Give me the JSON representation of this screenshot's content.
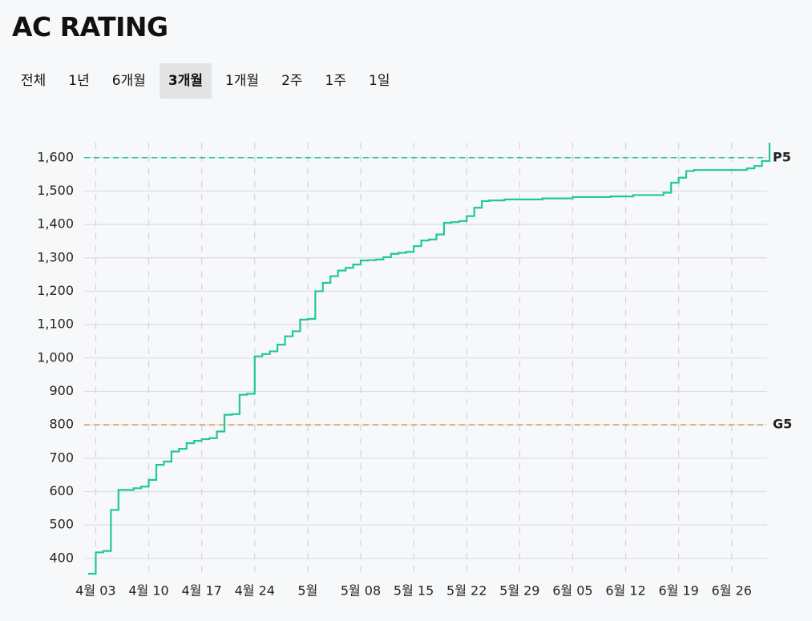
{
  "header": {
    "title": "AC RATING"
  },
  "tabs": [
    {
      "label": "전체"
    },
    {
      "label": "1년"
    },
    {
      "label": "6개월"
    },
    {
      "label": "3개월",
      "active": true
    },
    {
      "label": "1개월"
    },
    {
      "label": "2주"
    },
    {
      "label": "1주"
    },
    {
      "label": "1일"
    }
  ],
  "chart_data": {
    "type": "step",
    "x": [
      "04-02",
      "04-03",
      "04-04",
      "04-05",
      "04-06",
      "04-08",
      "04-09",
      "04-10",
      "04-11",
      "04-12",
      "04-13",
      "04-14",
      "04-15",
      "04-16",
      "04-17",
      "04-18",
      "04-19",
      "04-20",
      "04-21",
      "04-22",
      "04-23",
      "04-24",
      "04-25",
      "04-26",
      "04-27",
      "04-28",
      "04-29",
      "04-30",
      "05-01",
      "05-02",
      "05-03",
      "05-04",
      "05-05",
      "05-06",
      "05-07",
      "05-08",
      "05-09",
      "05-10",
      "05-11",
      "05-12",
      "05-13",
      "05-14",
      "05-15",
      "05-16",
      "05-17",
      "05-18",
      "05-19",
      "05-20",
      "05-21",
      "05-22",
      "05-23",
      "05-24",
      "05-25",
      "05-27",
      "06-01",
      "06-05",
      "06-10",
      "06-13",
      "06-17",
      "06-18",
      "06-19",
      "06-20",
      "06-21",
      "06-28",
      "06-29",
      "06-30",
      "07-01"
    ],
    "series": [
      {
        "color": "#20c997",
        "values": [
          354,
          418,
          422,
          545,
          605,
          610,
          615,
          635,
          680,
          690,
          720,
          728,
          745,
          752,
          757,
          760,
          780,
          830,
          832,
          890,
          893,
          1005,
          1012,
          1020,
          1040,
          1065,
          1080,
          1115,
          1117,
          1200,
          1225,
          1245,
          1262,
          1270,
          1280,
          1292,
          1293,
          1295,
          1302,
          1312,
          1315,
          1318,
          1335,
          1352,
          1355,
          1370,
          1405,
          1407,
          1410,
          1425,
          1450,
          1470,
          1472,
          1475,
          1478,
          1482,
          1484,
          1488,
          1495,
          1525,
          1540,
          1560,
          1563,
          1568,
          1575,
          1590,
          1645
        ]
      }
    ],
    "xlim": [
      "04-02",
      "07-01"
    ],
    "xticks": [
      {
        "value": "04-03",
        "label": "4월 03"
      },
      {
        "value": "04-10",
        "label": "4월 10"
      },
      {
        "value": "04-17",
        "label": "4월 17"
      },
      {
        "value": "04-24",
        "label": "4월 24"
      },
      {
        "value": "05-01",
        "label": "5월"
      },
      {
        "value": "05-08",
        "label": "5월 08"
      },
      {
        "value": "05-15",
        "label": "5월 15"
      },
      {
        "value": "05-22",
        "label": "5월 22"
      },
      {
        "value": "05-29",
        "label": "5월 29"
      },
      {
        "value": "06-05",
        "label": "6월 05"
      },
      {
        "value": "06-12",
        "label": "6월 12"
      },
      {
        "value": "06-19",
        "label": "6월 19"
      },
      {
        "value": "06-26",
        "label": "6월 26"
      }
    ],
    "ylim": [
      354,
      1645
    ],
    "yticks": [
      400,
      500,
      600,
      700,
      800,
      900,
      {
        "value": 1000,
        "label": "1,000"
      },
      {
        "value": 1100,
        "label": "1,100"
      },
      {
        "value": 1200,
        "label": "1,200"
      },
      {
        "value": 1300,
        "label": "1,300"
      },
      {
        "value": 1400,
        "label": "1,400"
      },
      {
        "value": 1500,
        "label": "1,500"
      },
      {
        "value": 1600,
        "label": "1,600"
      }
    ],
    "grid": true,
    "reference_lines": [
      {
        "label": "P5",
        "value": 1600,
        "color": "#20c997"
      },
      {
        "label": "G5",
        "value": 800,
        "color": "#c9903a"
      }
    ]
  }
}
